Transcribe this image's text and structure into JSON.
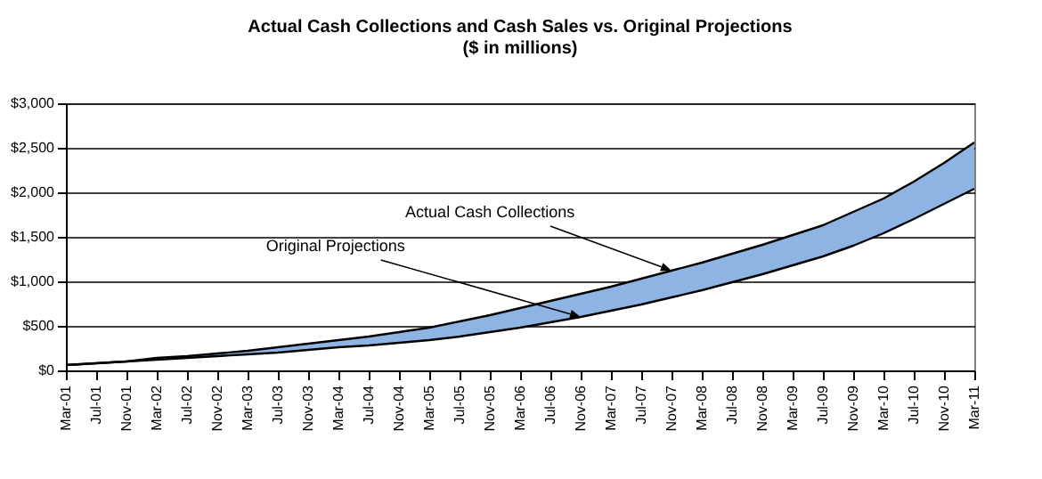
{
  "chart_data": {
    "type": "line",
    "title": "Actual Cash Collections and Cash Sales vs. Original Projections",
    "subtitle": "($ in millions)",
    "categories": [
      "Mar-01",
      "Jul-01",
      "Nov-01",
      "Mar-02",
      "Jul-02",
      "Nov-02",
      "Mar-03",
      "Jul-03",
      "Nov-03",
      "Mar-04",
      "Jul-04",
      "Nov-04",
      "Mar-05",
      "Jul-05",
      "Nov-05",
      "Mar-06",
      "Jul-06",
      "Nov-06",
      "Mar-07",
      "Jul-07",
      "Nov-07",
      "Mar-08",
      "Jul-08",
      "Nov-08",
      "Mar-09",
      "Jul-09",
      "Nov-09",
      "Mar-10",
      "Jul-10",
      "Nov-10",
      "Mar-11"
    ],
    "series": [
      {
        "color": "#000000",
        "values": [
          60,
          80,
          100,
          140,
          160,
          190,
          220,
          260,
          300,
          340,
          380,
          430,
          480,
          550,
          620,
          700,
          780,
          860,
          940,
          1030,
          1120,
          1210,
          1310,
          1410,
          1520,
          1630,
          1780,
          1930,
          2120,
          2330,
          2560
        ]
      },
      {
        "color": "#000000",
        "values": [
          60,
          80,
          100,
          120,
          140,
          160,
          180,
          200,
          230,
          260,
          280,
          310,
          340,
          380,
          430,
          480,
          540,
          600,
          670,
          740,
          820,
          900,
          990,
          1080,
          1180,
          1280,
          1400,
          1540,
          1700,
          1870,
          2040
        ],
        "lower": [
          60,
          80,
          100,
          120,
          140,
          160,
          180,
          200,
          230,
          260,
          280,
          310,
          340,
          380,
          430,
          480,
          540,
          600,
          670,
          740,
          820,
          900,
          990,
          1080,
          1180,
          1280,
          1400,
          1540,
          1700,
          1870,
          2040
        ],
        "upper": [
          60,
          80,
          100,
          140,
          160,
          190,
          220,
          260,
          300,
          340,
          380,
          430,
          480,
          550,
          620,
          700,
          780,
          860,
          940,
          1030,
          1120,
          1210,
          1310,
          1410,
          1520,
          1630,
          1780,
          1930,
          2120,
          2330,
          2560
        ]
      }
    ],
    "ylim": [
      0,
      3000
    ],
    "yticks": [
      {
        "value": 0,
        "label": "$0"
      },
      {
        "value": 500,
        "label": "$500"
      },
      {
        "value": 1000,
        "label": "$1,000"
      },
      {
        "value": 1500,
        "label": "$1,500"
      },
      {
        "value": 2000,
        "label": "$2,000"
      },
      {
        "value": 2500,
        "label": "$2,500"
      },
      {
        "value": 3000,
        "label": "$3,000"
      }
    ],
    "grid": "y",
    "marker": "none",
    "line_style": "solid",
    "annotations": [
      {
        "text": "Actual Cash Collections",
        "x": "Nov-07",
        "y": 1120
      },
      {
        "text": "Original Projections",
        "x": "Nov-06",
        "y": 600
      }
    ]
  }
}
